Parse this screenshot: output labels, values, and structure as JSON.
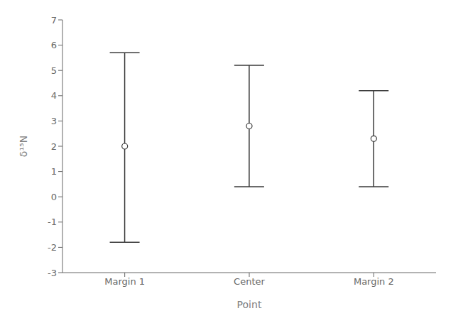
{
  "chart_data": {
    "type": "errorbar",
    "categories": [
      "Margin 1",
      "Center",
      "Margin 2"
    ],
    "values": [
      2.0,
      2.8,
      2.3
    ],
    "lower": [
      -1.8,
      0.4,
      0.4
    ],
    "upper": [
      5.7,
      5.2,
      4.2
    ],
    "color": "#3a3a3a",
    "xlabel": "Point",
    "ylabel": "δ¹⁵N",
    "ylim": [
      -3,
      7
    ],
    "yticks": [
      -3,
      -2,
      -1,
      0,
      1,
      2,
      3,
      4,
      5,
      6,
      7
    ],
    "grid": false
  }
}
